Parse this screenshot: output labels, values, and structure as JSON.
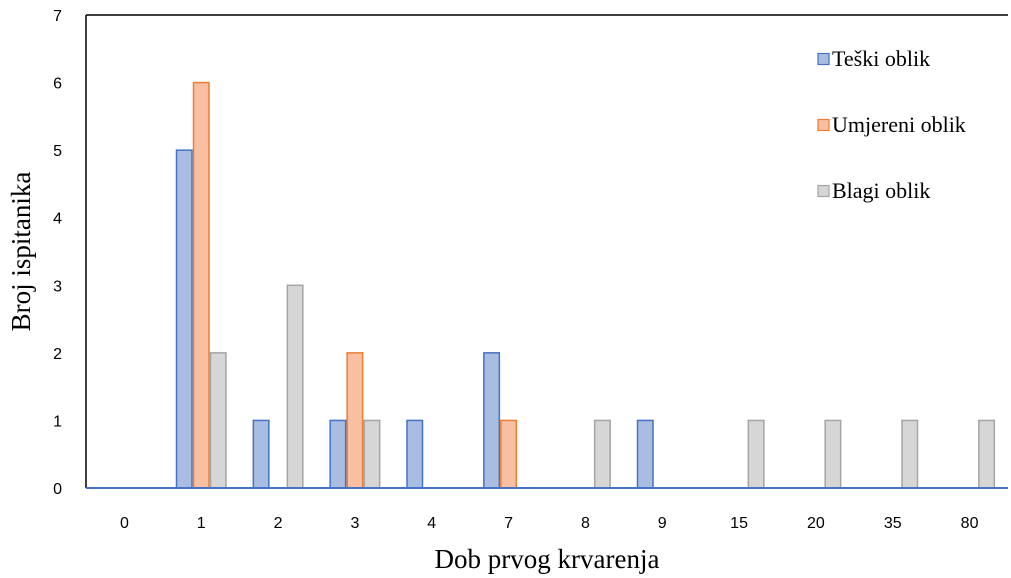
{
  "chart_data": {
    "type": "bar",
    "title": "",
    "xlabel": "Dob prvog krvarenja",
    "ylabel": "Broj ispitanika",
    "categories": [
      "0",
      "1",
      "2",
      "3",
      "4",
      "7",
      "8",
      "9",
      "15",
      "20",
      "35",
      "80"
    ],
    "ylim": [
      0,
      7
    ],
    "yticks": [
      0,
      1,
      2,
      3,
      4,
      5,
      6,
      7
    ],
    "grid": false,
    "legend_position": "top-right",
    "series": [
      {
        "name": "Teški oblik",
        "color": "#4472C4",
        "fill": "#A9BDE3",
        "values": [
          0,
          5,
          1,
          1,
          1,
          2,
          0,
          1,
          0,
          0,
          0,
          0
        ]
      },
      {
        "name": "Umjereni oblik",
        "color": "#ED7D31",
        "fill": "#F8BFA3",
        "values": [
          0,
          6,
          0,
          2,
          0,
          1,
          0,
          0,
          0,
          0,
          0,
          0
        ]
      },
      {
        "name": "Blagi oblik",
        "color": "#A5A5A5",
        "fill": "#D6D6D6",
        "values": [
          0,
          2,
          3,
          1,
          0,
          0,
          1,
          0,
          1,
          1,
          1,
          1
        ]
      }
    ]
  }
}
